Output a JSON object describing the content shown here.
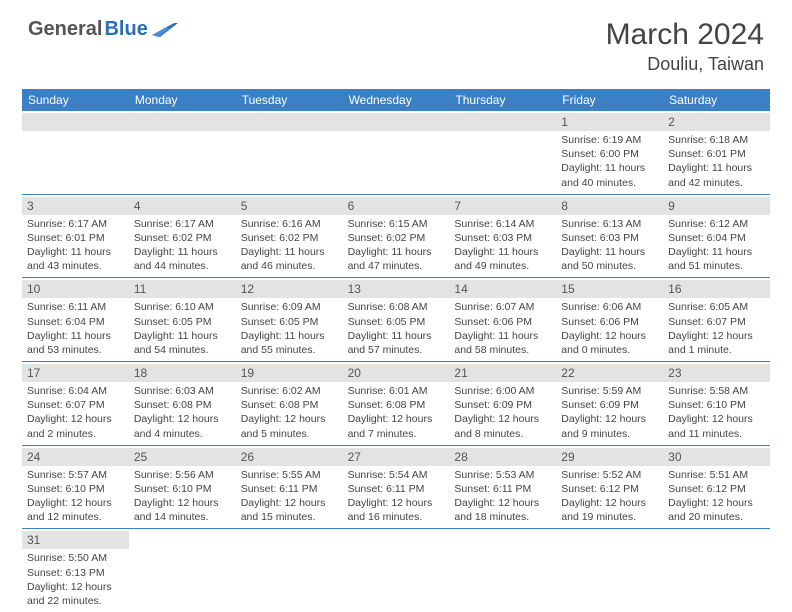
{
  "logo": {
    "text1": "General",
    "text2": "Blue"
  },
  "title": "March 2024",
  "location": "Douliu, Taiwan",
  "colors": {
    "header_bg": "#3b7fc4",
    "header_text": "#ffffff",
    "daynum_bg": "#e3e3e3",
    "row_border": "#3b7fc4",
    "logo_blue": "#2d6fb5",
    "logo_gray": "#555555",
    "text": "#444444",
    "background": "#ffffff"
  },
  "fonts": {
    "title_size": 30,
    "location_size": 18,
    "dayhead_size": 12,
    "daynum_size": 12,
    "detail_size": 10.5,
    "logo_size": 20
  },
  "daynames": [
    "Sunday",
    "Monday",
    "Tuesday",
    "Wednesday",
    "Thursday",
    "Friday",
    "Saturday"
  ],
  "weeks": [
    [
      {
        "n": "",
        "sr": "",
        "ss": "",
        "dl": ""
      },
      {
        "n": "",
        "sr": "",
        "ss": "",
        "dl": ""
      },
      {
        "n": "",
        "sr": "",
        "ss": "",
        "dl": ""
      },
      {
        "n": "",
        "sr": "",
        "ss": "",
        "dl": ""
      },
      {
        "n": "",
        "sr": "",
        "ss": "",
        "dl": ""
      },
      {
        "n": "1",
        "sr": "Sunrise: 6:19 AM",
        "ss": "Sunset: 6:00 PM",
        "dl": "Daylight: 11 hours and 40 minutes."
      },
      {
        "n": "2",
        "sr": "Sunrise: 6:18 AM",
        "ss": "Sunset: 6:01 PM",
        "dl": "Daylight: 11 hours and 42 minutes."
      }
    ],
    [
      {
        "n": "3",
        "sr": "Sunrise: 6:17 AM",
        "ss": "Sunset: 6:01 PM",
        "dl": "Daylight: 11 hours and 43 minutes."
      },
      {
        "n": "4",
        "sr": "Sunrise: 6:17 AM",
        "ss": "Sunset: 6:02 PM",
        "dl": "Daylight: 11 hours and 44 minutes."
      },
      {
        "n": "5",
        "sr": "Sunrise: 6:16 AM",
        "ss": "Sunset: 6:02 PM",
        "dl": "Daylight: 11 hours and 46 minutes."
      },
      {
        "n": "6",
        "sr": "Sunrise: 6:15 AM",
        "ss": "Sunset: 6:02 PM",
        "dl": "Daylight: 11 hours and 47 minutes."
      },
      {
        "n": "7",
        "sr": "Sunrise: 6:14 AM",
        "ss": "Sunset: 6:03 PM",
        "dl": "Daylight: 11 hours and 49 minutes."
      },
      {
        "n": "8",
        "sr": "Sunrise: 6:13 AM",
        "ss": "Sunset: 6:03 PM",
        "dl": "Daylight: 11 hours and 50 minutes."
      },
      {
        "n": "9",
        "sr": "Sunrise: 6:12 AM",
        "ss": "Sunset: 6:04 PM",
        "dl": "Daylight: 11 hours and 51 minutes."
      }
    ],
    [
      {
        "n": "10",
        "sr": "Sunrise: 6:11 AM",
        "ss": "Sunset: 6:04 PM",
        "dl": "Daylight: 11 hours and 53 minutes."
      },
      {
        "n": "11",
        "sr": "Sunrise: 6:10 AM",
        "ss": "Sunset: 6:05 PM",
        "dl": "Daylight: 11 hours and 54 minutes."
      },
      {
        "n": "12",
        "sr": "Sunrise: 6:09 AM",
        "ss": "Sunset: 6:05 PM",
        "dl": "Daylight: 11 hours and 55 minutes."
      },
      {
        "n": "13",
        "sr": "Sunrise: 6:08 AM",
        "ss": "Sunset: 6:05 PM",
        "dl": "Daylight: 11 hours and 57 minutes."
      },
      {
        "n": "14",
        "sr": "Sunrise: 6:07 AM",
        "ss": "Sunset: 6:06 PM",
        "dl": "Daylight: 11 hours and 58 minutes."
      },
      {
        "n": "15",
        "sr": "Sunrise: 6:06 AM",
        "ss": "Sunset: 6:06 PM",
        "dl": "Daylight: 12 hours and 0 minutes."
      },
      {
        "n": "16",
        "sr": "Sunrise: 6:05 AM",
        "ss": "Sunset: 6:07 PM",
        "dl": "Daylight: 12 hours and 1 minute."
      }
    ],
    [
      {
        "n": "17",
        "sr": "Sunrise: 6:04 AM",
        "ss": "Sunset: 6:07 PM",
        "dl": "Daylight: 12 hours and 2 minutes."
      },
      {
        "n": "18",
        "sr": "Sunrise: 6:03 AM",
        "ss": "Sunset: 6:08 PM",
        "dl": "Daylight: 12 hours and 4 minutes."
      },
      {
        "n": "19",
        "sr": "Sunrise: 6:02 AM",
        "ss": "Sunset: 6:08 PM",
        "dl": "Daylight: 12 hours and 5 minutes."
      },
      {
        "n": "20",
        "sr": "Sunrise: 6:01 AM",
        "ss": "Sunset: 6:08 PM",
        "dl": "Daylight: 12 hours and 7 minutes."
      },
      {
        "n": "21",
        "sr": "Sunrise: 6:00 AM",
        "ss": "Sunset: 6:09 PM",
        "dl": "Daylight: 12 hours and 8 minutes."
      },
      {
        "n": "22",
        "sr": "Sunrise: 5:59 AM",
        "ss": "Sunset: 6:09 PM",
        "dl": "Daylight: 12 hours and 9 minutes."
      },
      {
        "n": "23",
        "sr": "Sunrise: 5:58 AM",
        "ss": "Sunset: 6:10 PM",
        "dl": "Daylight: 12 hours and 11 minutes."
      }
    ],
    [
      {
        "n": "24",
        "sr": "Sunrise: 5:57 AM",
        "ss": "Sunset: 6:10 PM",
        "dl": "Daylight: 12 hours and 12 minutes."
      },
      {
        "n": "25",
        "sr": "Sunrise: 5:56 AM",
        "ss": "Sunset: 6:10 PM",
        "dl": "Daylight: 12 hours and 14 minutes."
      },
      {
        "n": "26",
        "sr": "Sunrise: 5:55 AM",
        "ss": "Sunset: 6:11 PM",
        "dl": "Daylight: 12 hours and 15 minutes."
      },
      {
        "n": "27",
        "sr": "Sunrise: 5:54 AM",
        "ss": "Sunset: 6:11 PM",
        "dl": "Daylight: 12 hours and 16 minutes."
      },
      {
        "n": "28",
        "sr": "Sunrise: 5:53 AM",
        "ss": "Sunset: 6:11 PM",
        "dl": "Daylight: 12 hours and 18 minutes."
      },
      {
        "n": "29",
        "sr": "Sunrise: 5:52 AM",
        "ss": "Sunset: 6:12 PM",
        "dl": "Daylight: 12 hours and 19 minutes."
      },
      {
        "n": "30",
        "sr": "Sunrise: 5:51 AM",
        "ss": "Sunset: 6:12 PM",
        "dl": "Daylight: 12 hours and 20 minutes."
      }
    ],
    [
      {
        "n": "31",
        "sr": "Sunrise: 5:50 AM",
        "ss": "Sunset: 6:13 PM",
        "dl": "Daylight: 12 hours and 22 minutes."
      },
      {
        "n": "",
        "sr": "",
        "ss": "",
        "dl": ""
      },
      {
        "n": "",
        "sr": "",
        "ss": "",
        "dl": ""
      },
      {
        "n": "",
        "sr": "",
        "ss": "",
        "dl": ""
      },
      {
        "n": "",
        "sr": "",
        "ss": "",
        "dl": ""
      },
      {
        "n": "",
        "sr": "",
        "ss": "",
        "dl": ""
      },
      {
        "n": "",
        "sr": "",
        "ss": "",
        "dl": ""
      }
    ]
  ]
}
